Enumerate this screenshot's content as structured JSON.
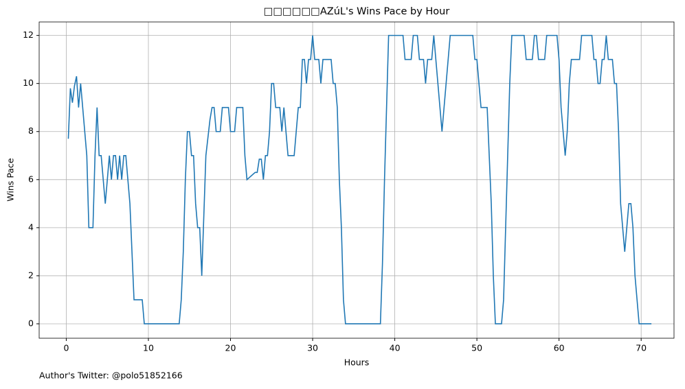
{
  "chart_data": {
    "type": "line",
    "title": "□□□□□□AZúL's Wins Pace by Hour",
    "x_label": "Hours",
    "y_label": "Wins Pace",
    "annotation": "Author's Twitter: @polo51852166",
    "x": [
      0.25,
      0.5,
      0.75,
      1.0,
      1.25,
      1.5,
      1.75,
      2.0,
      2.5,
      2.75,
      3.25,
      3.5,
      3.75,
      4.0,
      4.25,
      4.75,
      5.0,
      5.25,
      5.5,
      5.75,
      6.0,
      6.25,
      6.5,
      6.75,
      7.0,
      7.25,
      7.75,
      8.25,
      9.25,
      9.5,
      13.75,
      14.0,
      14.25,
      14.5,
      14.75,
      15.0,
      15.25,
      15.5,
      15.75,
      16.0,
      16.25,
      16.5,
      16.75,
      17.0,
      17.5,
      17.75,
      18.0,
      18.25,
      18.75,
      19.0,
      19.75,
      20.0,
      20.5,
      20.75,
      21.5,
      21.75,
      22.0,
      23.0,
      23.25,
      23.5,
      23.75,
      24.0,
      24.25,
      24.5,
      24.75,
      25.0,
      25.25,
      25.5,
      26.0,
      26.25,
      26.5,
      26.75,
      27.0,
      27.75,
      28.0,
      28.25,
      28.5,
      28.75,
      29.0,
      29.25,
      29.5,
      29.75,
      30.0,
      30.25,
      30.75,
      31.0,
      31.25,
      32.25,
      32.5,
      32.75,
      33.0,
      33.25,
      33.5,
      33.75,
      34.0,
      38.25,
      38.5,
      38.75,
      39.0,
      39.25,
      41.0,
      41.25,
      42.0,
      42.25,
      42.75,
      43.0,
      43.5,
      43.75,
      44.0,
      44.5,
      44.75,
      45.0,
      45.75,
      46.0,
      46.75,
      49.5,
      49.75,
      50.0,
      50.5,
      51.25,
      51.75,
      52.0,
      52.25,
      53.0,
      53.25,
      53.5,
      54.0,
      54.25,
      55.75,
      56.0,
      56.75,
      57.0,
      57.25,
      57.5,
      58.25,
      58.5,
      59.75,
      60.0,
      60.25,
      60.75,
      61.0,
      61.25,
      61.5,
      62.5,
      62.75,
      64.0,
      64.25,
      64.5,
      64.75,
      65.0,
      65.25,
      65.5,
      65.75,
      66.0,
      66.5,
      66.75,
      67.0,
      67.25,
      67.5,
      67.75,
      68.0,
      68.25,
      68.5,
      68.75,
      69.0,
      69.25,
      69.5,
      69.75,
      71.25
    ],
    "series": [
      {
        "name": "Wins Pace",
        "color": "#1f77b4",
        "values": [
          7.7,
          9.8,
          9.2,
          9.9,
          10.3,
          9.0,
          10.0,
          9.0,
          7.0,
          4.0,
          4.0,
          7.0,
          9.0,
          7.0,
          7.0,
          5.0,
          6.0,
          7.0,
          6.0,
          7.0,
          7.0,
          6.0,
          7.0,
          6.0,
          7.0,
          7.0,
          5.0,
          1.0,
          1.0,
          0,
          0,
          1,
          3,
          6,
          8,
          8,
          7,
          7,
          5,
          4,
          4,
          2,
          4.5,
          7,
          8.5,
          9,
          9,
          8,
          8,
          9,
          9,
          8,
          8,
          9,
          9,
          7,
          6,
          6.3,
          6.3,
          6.85,
          6.85,
          6,
          7,
          7,
          8,
          10,
          10,
          9,
          9,
          8,
          9,
          8,
          7,
          7,
          8,
          9,
          9,
          11,
          11,
          10,
          11,
          11,
          12,
          11,
          11,
          10,
          11,
          11,
          10,
          10,
          9,
          6,
          4,
          1,
          0,
          0,
          2.5,
          6,
          9,
          12,
          12,
          11,
          11,
          12,
          12,
          11,
          11,
          10,
          11,
          11,
          12,
          11,
          8,
          9,
          12,
          12,
          11,
          11,
          9,
          9,
          5,
          2,
          0,
          0,
          1,
          4,
          10,
          12,
          12,
          11,
          11,
          12,
          12,
          11,
          11,
          12,
          12,
          11,
          9,
          7,
          8,
          10,
          11,
          11,
          12,
          12,
          11,
          11,
          10,
          10,
          11,
          11,
          12,
          11,
          11,
          10,
          10,
          8,
          5,
          4,
          3,
          4,
          5,
          5,
          4,
          2,
          1,
          0,
          0
        ]
      }
    ],
    "xlim": [
      -3.3,
      74.0
    ],
    "ylim": [
      -0.6,
      12.56
    ],
    "xticks": [
      0,
      10,
      20,
      30,
      40,
      50,
      60,
      70
    ],
    "yticks": [
      0,
      2,
      4,
      6,
      8,
      10,
      12
    ],
    "grid": true
  }
}
